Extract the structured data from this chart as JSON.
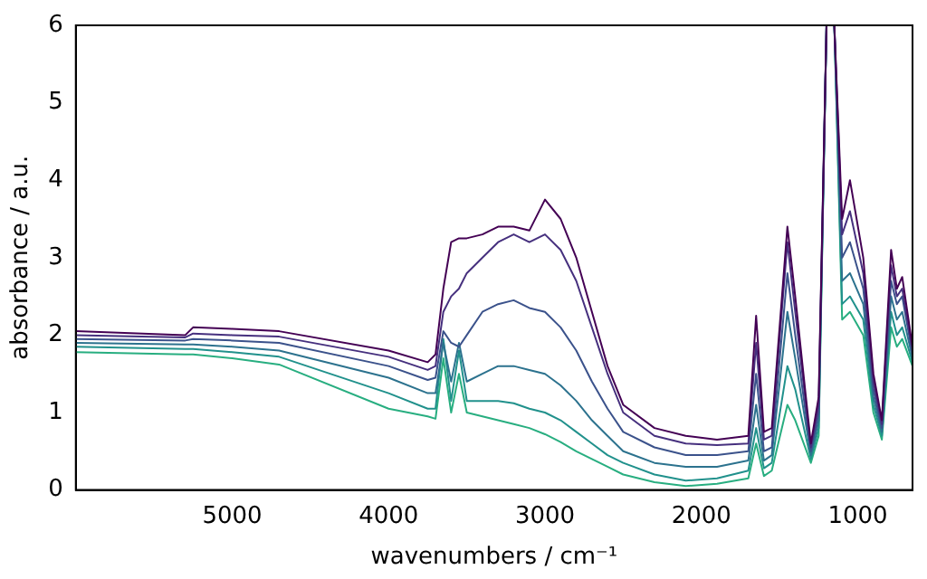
{
  "chart_data": {
    "type": "line",
    "xlabel": "wavenumbers / cm⁻¹",
    "ylabel": "absorbance / a.u.",
    "x": [
      6000,
      5300,
      5250,
      5000,
      4700,
      4000,
      3750,
      3700,
      3650,
      3600,
      3550,
      3500,
      3400,
      3300,
      3200,
      3100,
      3000,
      2900,
      2800,
      2700,
      2600,
      2500,
      2300,
      2100,
      1900,
      1700,
      1650,
      1600,
      1550,
      1450,
      1400,
      1300,
      1250,
      1200,
      1150,
      1100,
      1050,
      965,
      900,
      846,
      787,
      750,
      716,
      650
    ],
    "series": [
      {
        "color": "#440154",
        "values": [
          2.05,
          2.0,
          2.1,
          2.08,
          2.05,
          1.8,
          1.65,
          1.75,
          2.6,
          3.2,
          3.25,
          3.25,
          3.3,
          3.4,
          3.4,
          3.35,
          3.75,
          3.5,
          3.0,
          2.3,
          1.6,
          1.1,
          0.8,
          0.7,
          0.65,
          0.7,
          2.25,
          0.75,
          0.8,
          3.4,
          2.5,
          0.6,
          1.2,
          6,
          6,
          3.5,
          4.0,
          3.0,
          1.5,
          0.9,
          3.1,
          2.6,
          2.75,
          1.85
        ]
      },
      {
        "color": "#46307e",
        "values": [
          2.0,
          1.97,
          2.02,
          2.0,
          1.98,
          1.72,
          1.55,
          1.6,
          2.3,
          2.5,
          2.6,
          2.8,
          3.0,
          3.2,
          3.3,
          3.2,
          3.3,
          3.1,
          2.7,
          2.1,
          1.5,
          1.0,
          0.7,
          0.6,
          0.58,
          0.6,
          1.9,
          0.65,
          0.7,
          3.2,
          2.3,
          0.55,
          1.1,
          6,
          6,
          3.3,
          3.6,
          2.8,
          1.4,
          0.85,
          2.9,
          2.5,
          2.6,
          1.8
        ]
      },
      {
        "color": "#3b528b",
        "values": [
          1.95,
          1.93,
          1.95,
          1.93,
          1.9,
          1.6,
          1.42,
          1.45,
          2.05,
          1.9,
          1.85,
          2.0,
          2.3,
          2.4,
          2.45,
          2.35,
          2.3,
          2.1,
          1.8,
          1.4,
          1.05,
          0.75,
          0.55,
          0.45,
          0.45,
          0.5,
          1.5,
          0.5,
          0.55,
          2.8,
          2.0,
          0.5,
          1.0,
          6,
          6,
          3.0,
          3.2,
          2.6,
          1.3,
          0.8,
          2.7,
          2.4,
          2.5,
          1.75
        ]
      },
      {
        "color": "#2c728e",
        "values": [
          1.9,
          1.88,
          1.88,
          1.85,
          1.8,
          1.45,
          1.25,
          1.25,
          1.9,
          1.4,
          1.9,
          1.4,
          1.5,
          1.6,
          1.6,
          1.55,
          1.5,
          1.35,
          1.15,
          0.9,
          0.7,
          0.5,
          0.35,
          0.3,
          0.3,
          0.38,
          1.1,
          0.38,
          0.45,
          2.3,
          1.7,
          0.45,
          0.9,
          6,
          6,
          2.7,
          2.8,
          2.4,
          1.2,
          0.75,
          2.5,
          2.2,
          2.3,
          1.7
        ]
      },
      {
        "color": "#21918c",
        "values": [
          1.85,
          1.82,
          1.82,
          1.78,
          1.72,
          1.25,
          1.05,
          1.05,
          1.95,
          1.15,
          1.8,
          1.15,
          1.15,
          1.15,
          1.12,
          1.05,
          1.0,
          0.9,
          0.75,
          0.6,
          0.45,
          0.35,
          0.2,
          0.12,
          0.15,
          0.25,
          0.8,
          0.28,
          0.35,
          1.6,
          1.3,
          0.4,
          0.8,
          6,
          6,
          2.4,
          2.5,
          2.2,
          1.1,
          0.7,
          2.3,
          2.0,
          2.1,
          1.65
        ]
      },
      {
        "color": "#28ae80",
        "values": [
          1.78,
          1.75,
          1.75,
          1.7,
          1.62,
          1.05,
          0.95,
          0.92,
          1.7,
          1.0,
          1.5,
          1.0,
          0.95,
          0.9,
          0.85,
          0.8,
          0.72,
          0.62,
          0.5,
          0.4,
          0.3,
          0.2,
          0.1,
          0.05,
          0.08,
          0.15,
          0.6,
          0.18,
          0.25,
          1.1,
          0.9,
          0.35,
          0.7,
          6,
          6,
          2.2,
          2.3,
          2.0,
          1.0,
          0.65,
          2.1,
          1.85,
          1.95,
          1.6
        ]
      }
    ],
    "xlim": [
      6000,
      650
    ],
    "xticks": [
      5000,
      4000,
      3000,
      2000,
      1000
    ],
    "ylim": [
      0,
      6
    ],
    "yticks": [
      0,
      1,
      2,
      3,
      4,
      5,
      6
    ],
    "grid": false,
    "legend": false
  }
}
